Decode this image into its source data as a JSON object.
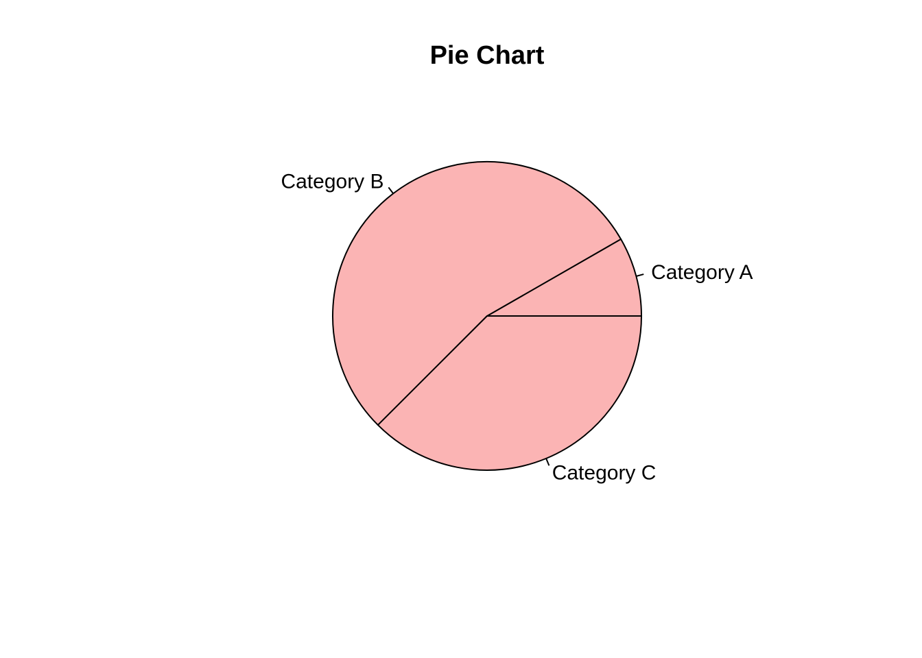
{
  "chart_data": {
    "type": "pie",
    "title": "Pie Chart",
    "categories": [
      "Category A",
      "Category B",
      "Category C"
    ],
    "values": [
      8.3,
      54.2,
      37.5
    ],
    "start_angle_deg": 0,
    "direction": "counterclockwise",
    "colors": [
      "#FBB4B4",
      "#FBB4B4",
      "#FBB4B4"
    ],
    "border_color": "#000000"
  }
}
